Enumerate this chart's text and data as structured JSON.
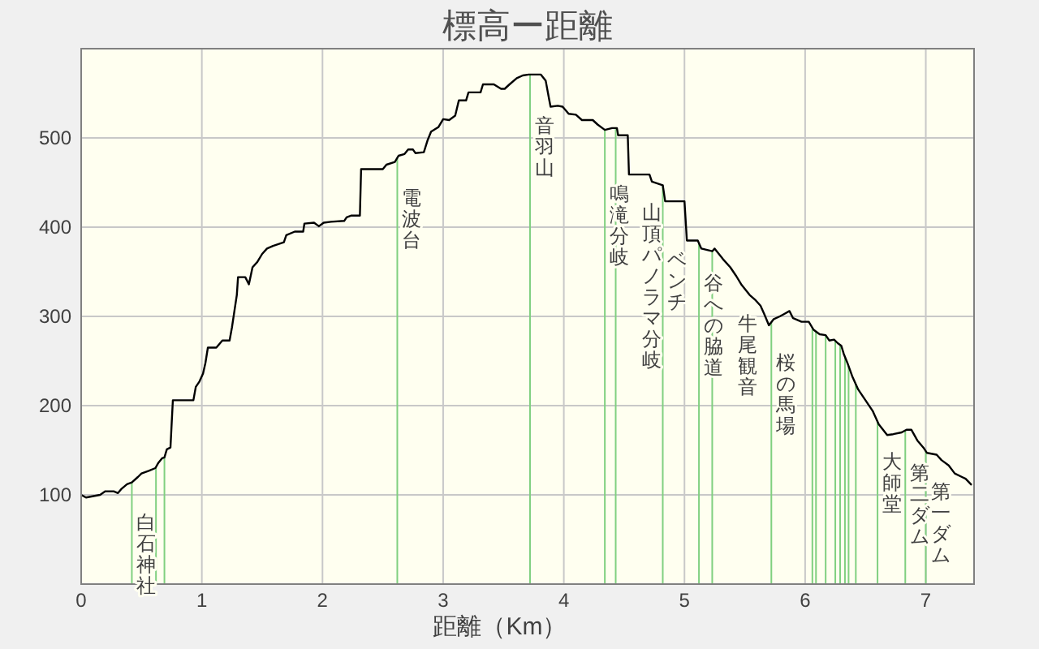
{
  "chart_data": {
    "type": "line",
    "title": "標高ー距離",
    "xlabel": "距離（Km）",
    "color": "#000000",
    "x": [
      0,
      0.04,
      0.157,
      0.2,
      0.27,
      0.305,
      0.336,
      0.38,
      0.42,
      0.47,
      0.5,
      0.56,
      0.615,
      0.64,
      0.67,
      0.69,
      0.71,
      0.74,
      0.75,
      0.76,
      0.93,
      0.95,
      0.98,
      1.01,
      1.03,
      1.05,
      1.12,
      1.17,
      1.23,
      1.25,
      1.27,
      1.29,
      1.3,
      1.36,
      1.39,
      1.42,
      1.46,
      1.5,
      1.54,
      1.59,
      1.68,
      1.7,
      1.77,
      1.84,
      1.85,
      1.93,
      1.97,
      2.01,
      2.07,
      2.18,
      2.2,
      2.24,
      2.31,
      2.32,
      2.5,
      2.53,
      2.6,
      2.63,
      2.68,
      2.71,
      2.75,
      2.77,
      2.84,
      2.87,
      2.9,
      2.96,
      3,
      3.05,
      3.1,
      3.13,
      3.19,
      3.21,
      3.31,
      3.33,
      3.42,
      3.48,
      3.51,
      3.55,
      3.61,
      3.66,
      3.71,
      3.81,
      3.85,
      3.88,
      3.89,
      3.95,
      3.99,
      4.04,
      4.1,
      4.15,
      4.24,
      4.28,
      4.34,
      4.4,
      4.44,
      4.45,
      4.53,
      4.54,
      4.71,
      4.73,
      4.82,
      4.84,
      5,
      5.02,
      5.11,
      5.14,
      5.23,
      5.25,
      5.32,
      5.38,
      5.43,
      5.47,
      5.54,
      5.59,
      5.63,
      5.66,
      5.7,
      5.74,
      5.79,
      5.83,
      5.87,
      5.9,
      5.97,
      6.03,
      6.07,
      6.12,
      6.17,
      6.2,
      6.24,
      6.27,
      6.3,
      6.32,
      6.35,
      6.39,
      6.44,
      6.5,
      6.56,
      6.61,
      6.68,
      6.73,
      6.8,
      6.84,
      6.88,
      6.93,
      6.98,
      7.01,
      7.09,
      7.13,
      7.19,
      7.24,
      7.3,
      7.33,
      7.38
    ],
    "values": [
      100,
      97,
      100,
      104,
      104,
      102,
      107,
      112,
      114,
      120,
      124,
      127,
      130,
      136,
      141,
      142,
      151,
      153,
      180,
      206,
      206,
      221,
      227,
      236,
      248,
      265,
      265,
      273,
      273,
      288,
      306,
      324,
      344,
      344,
      336,
      355,
      361,
      370,
      376,
      379,
      383,
      391,
      395,
      395,
      404,
      405,
      401,
      405,
      406,
      407,
      411,
      413,
      413,
      465,
      465,
      470,
      473,
      480,
      482,
      487,
      487,
      483,
      484,
      497,
      507,
      512,
      521,
      520,
      525,
      542,
      542,
      551,
      551,
      560,
      560,
      555,
      555,
      560,
      567,
      570,
      571,
      571,
      564,
      542,
      535,
      536,
      535,
      527,
      526,
      520,
      520,
      515,
      509,
      511,
      511,
      503,
      503,
      459,
      459,
      451,
      447,
      429,
      429,
      385,
      385,
      376,
      373,
      376,
      364,
      355,
      345,
      336,
      324,
      318,
      312,
      303,
      290,
      297,
      300,
      303,
      306,
      298,
      294,
      294,
      285,
      280,
      279,
      273,
      274,
      270,
      267,
      258,
      248,
      233,
      218,
      206,
      194,
      179,
      167,
      168,
      170,
      173,
      173,
      161,
      153,
      147,
      145,
      139,
      133,
      124,
      120,
      118,
      111
    ],
    "xlim": [
      0,
      7.4
    ],
    "xticks": [
      0,
      1,
      2,
      3,
      4,
      5,
      6,
      7
    ],
    "ylim": [
      0,
      600
    ],
    "yticks": [
      100,
      200,
      300,
      400,
      500
    ],
    "grid": true,
    "ref_lines": [
      {
        "axis": "x",
        "value": 0.42,
        "label": "白石神社",
        "color": "#80d080"
      },
      {
        "axis": "x",
        "value": 0.62,
        "label": null,
        "color": "#80d080"
      },
      {
        "axis": "x",
        "value": 0.69,
        "label": null,
        "color": "#80d080"
      },
      {
        "axis": "x",
        "value": 2.62,
        "label": "電波台",
        "color": "#80d080"
      },
      {
        "axis": "x",
        "value": 3.72,
        "label": "音羽山",
        "color": "#80d080"
      },
      {
        "axis": "x",
        "value": 4.34,
        "label": "鳴滝分岐",
        "color": "#80d080"
      },
      {
        "axis": "x",
        "value": 4.43,
        "label": "山頂パノラマ分岐",
        "color": "#80d080"
      },
      {
        "axis": "x",
        "value": 4.82,
        "label": "ベンチ",
        "color": "#80d080"
      },
      {
        "axis": "x",
        "value": 5.12,
        "label": "谷への脇道",
        "color": "#80d080"
      },
      {
        "axis": "x",
        "value": 5.23,
        "label": "牛尾観音",
        "color": "#80d080"
      },
      {
        "axis": "x",
        "value": 5.72,
        "label": "桜の馬場",
        "color": "#80d080"
      },
      {
        "axis": "x",
        "value": 6.06,
        "label": null,
        "color": "#80d080"
      },
      {
        "axis": "x",
        "value": 6.09,
        "label": null,
        "color": "#80d080"
      },
      {
        "axis": "x",
        "value": 6.17,
        "label": null,
        "color": "#80d080"
      },
      {
        "axis": "x",
        "value": 6.25,
        "label": null,
        "color": "#80d080"
      },
      {
        "axis": "x",
        "value": 6.29,
        "label": null,
        "color": "#80d080"
      },
      {
        "axis": "x",
        "value": 6.33,
        "label": null,
        "color": "#80d080"
      },
      {
        "axis": "x",
        "value": 6.36,
        "label": null,
        "color": "#80d080"
      },
      {
        "axis": "x",
        "value": 6.42,
        "label": null,
        "color": "#80d080"
      },
      {
        "axis": "x",
        "value": 6.6,
        "label": "大師堂",
        "color": "#80d080"
      },
      {
        "axis": "x",
        "value": 6.83,
        "label": "第二ダム",
        "color": "#80d080"
      },
      {
        "axis": "x",
        "value": 7.0,
        "label": "第一ダム",
        "color": "#80d080"
      }
    ]
  }
}
